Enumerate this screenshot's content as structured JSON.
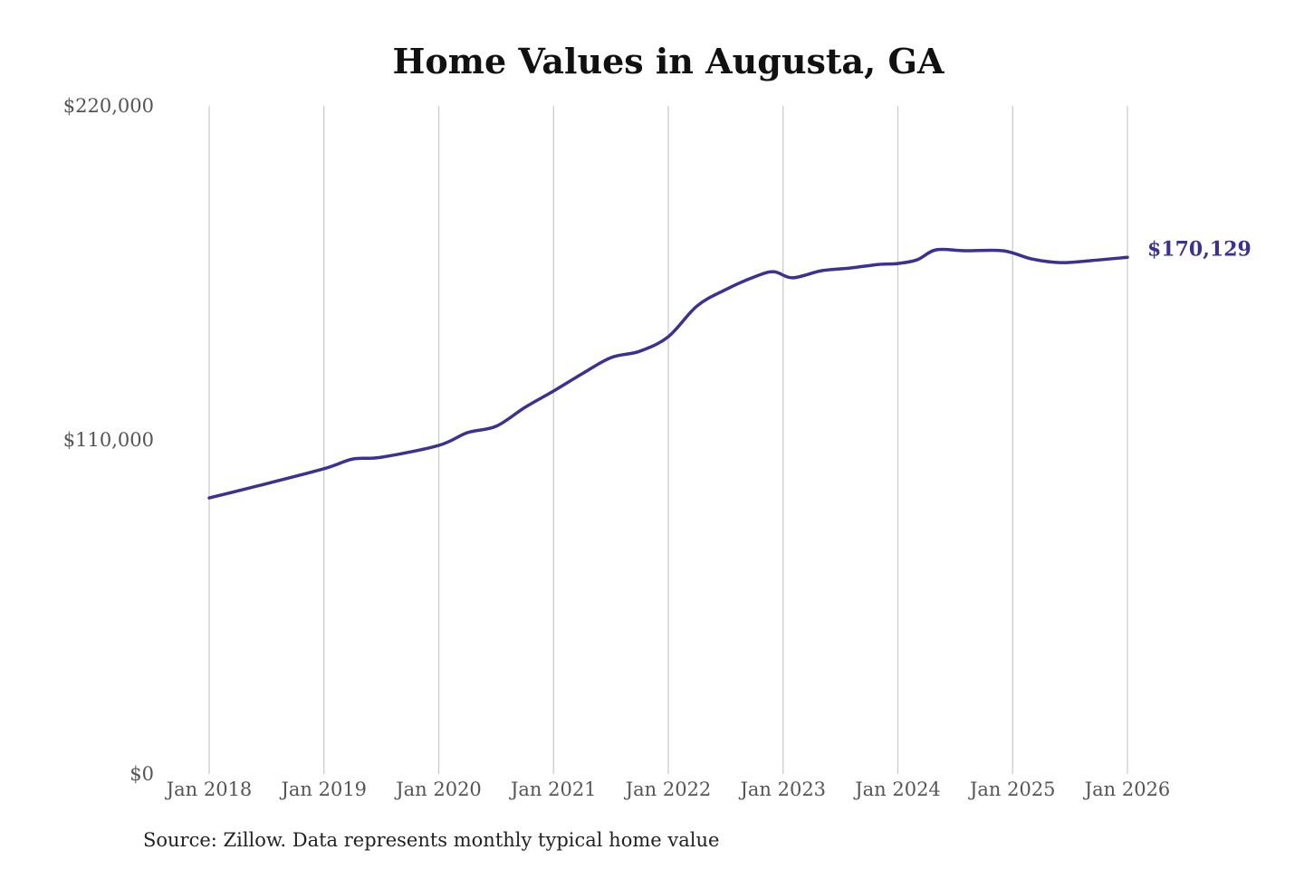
{
  "chart_data": {
    "type": "line",
    "title": "Home Values in Augusta, GA",
    "xlabel": "",
    "ylabel": "",
    "ylim": [
      0,
      220000
    ],
    "xlim": [
      "2018-01",
      "2026-01"
    ],
    "y_ticks": [
      "$0",
      "$110,000",
      "$220,000"
    ],
    "y_tick_values": [
      0,
      110000,
      220000
    ],
    "x_ticks": [
      "Jan 2018",
      "Jan 2019",
      "Jan 2020",
      "Jan 2021",
      "Jan 2022",
      "Jan 2023",
      "Jan 2024",
      "Jan 2025",
      "Jan 2026"
    ],
    "x_tick_values": [
      "2018-01",
      "2019-01",
      "2020-01",
      "2021-01",
      "2022-01",
      "2023-01",
      "2024-01",
      "2025-01",
      "2026-01"
    ],
    "grid": "vertical",
    "line_color": "#3b3192",
    "end_label": "$170,129",
    "series": [
      {
        "x": [
          "2018-01",
          "2018-06",
          "2019-01",
          "2019-04",
          "2019-07",
          "2020-01",
          "2020-04",
          "2020-07",
          "2020-10",
          "2021-01",
          "2021-04",
          "2021-07",
          "2021-10",
          "2022-01",
          "2022-04",
          "2022-07",
          "2022-10",
          "2022-12",
          "2023-02",
          "2023-05",
          "2023-08",
          "2023-11",
          "2024-01",
          "2024-03",
          "2024-05",
          "2024-08",
          "2024-12",
          "2025-03",
          "2025-06",
          "2025-09",
          "2026-01"
        ],
        "values": [
          90900,
          94800,
          100500,
          103700,
          104300,
          108200,
          112400,
          114500,
          120700,
          126100,
          131800,
          137100,
          139200,
          144000,
          154100,
          159500,
          163700,
          165400,
          163400,
          165700,
          166600,
          167800,
          168100,
          169300,
          172600,
          172300,
          172300,
          169600,
          168400,
          169000,
          170129
        ]
      }
    ]
  },
  "source_note": "Source: Zillow. Data represents monthly typical home value"
}
